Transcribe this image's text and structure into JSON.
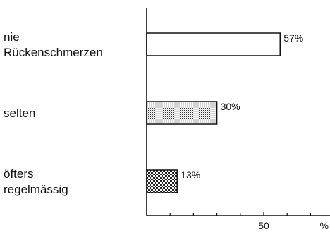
{
  "chart_data": {
    "type": "bar",
    "orientation": "horizontal",
    "categories": [
      [
        "nie",
        "Rückenschmerzen"
      ],
      [
        "selten"
      ],
      [
        "öfters",
        "regelmässig"
      ]
    ],
    "values": [
      57,
      30,
      13
    ],
    "value_labels": [
      "57%",
      "30%",
      "13%"
    ],
    "bar_fills": [
      "none",
      "light-dots",
      "dense-dots"
    ],
    "x_tick_labels": [
      {
        "value": 50,
        "label": "50"
      },
      {
        "value": 100,
        "label": "%"
      }
    ],
    "xlim": [
      0,
      100
    ],
    "grid": false,
    "title": "",
    "xlabel": "",
    "ylabel": ""
  }
}
